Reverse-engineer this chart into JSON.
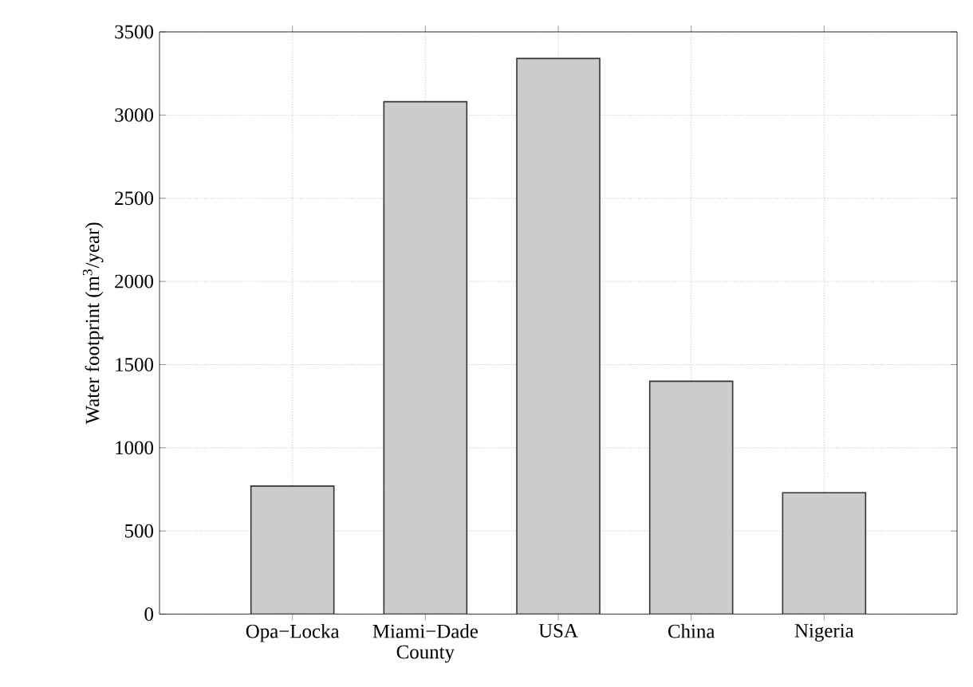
{
  "chart_data": {
    "type": "bar",
    "categories": [
      "Opa−Locka",
      "Miami−Dade County",
      "USA",
      "China",
      "Nigeria"
    ],
    "values": [
      770,
      3080,
      3340,
      1400,
      730
    ],
    "color": "#cccccc",
    "ylabel": "Water footprint (m$^{3}$/year)",
    "ylim": [
      0,
      3500
    ],
    "yticks": [
      0,
      500,
      1000,
      1500,
      2000,
      2500,
      3000,
      3500
    ],
    "grid": true
  }
}
